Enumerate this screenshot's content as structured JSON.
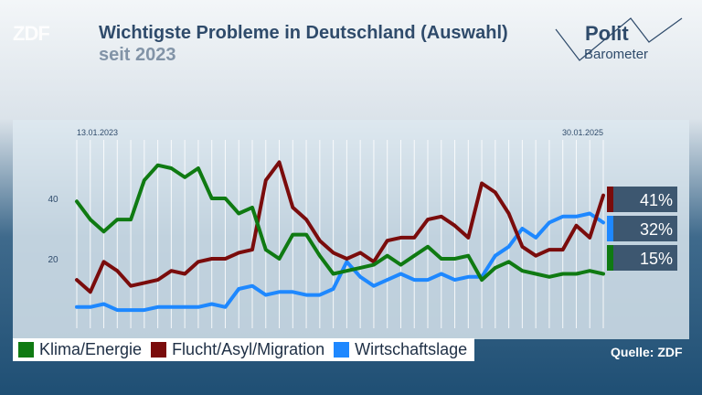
{
  "header": {
    "brand": "ZDF",
    "title": "Wichtigste Probleme in Deutschland (Auswahl)",
    "subtitle": "seit 2023"
  },
  "logo": {
    "line1": "Polit",
    "line2": "Barometer"
  },
  "source": "Quelle: ZDF",
  "colors": {
    "klima": "#0f7a12",
    "flucht": "#7a0c0c",
    "wirtschaft": "#1e88ff",
    "badge": "#3d5770"
  },
  "chart_data": {
    "type": "line",
    "title": "Wichtigste Probleme in Deutschland (Auswahl)",
    "subtitle": "seit 2023",
    "x_start_label": "13.01.2023",
    "x_end_label": "30.01.2025",
    "y_ticks": [
      20,
      40
    ],
    "ylim": [
      0,
      60
    ],
    "grid": "vertical",
    "legend": "bottom",
    "series": [
      {
        "name": "Klima/Energie",
        "key": "klima",
        "color": "#0f7a12",
        "final_label": "15%",
        "values": [
          39,
          33,
          29,
          33,
          33,
          46,
          51,
          50,
          47,
          50,
          40,
          40,
          35,
          37,
          23,
          20,
          28,
          28,
          21,
          15,
          16,
          17,
          18,
          21,
          18,
          21,
          24,
          20,
          20,
          21,
          13,
          17,
          19,
          16,
          15,
          14,
          15,
          15,
          16,
          15
        ]
      },
      {
        "name": "Flucht/Asyl/Migration",
        "key": "flucht",
        "color": "#7a0c0c",
        "final_label": "41%",
        "values": [
          13,
          9,
          19,
          16,
          11,
          12,
          13,
          16,
          15,
          19,
          20,
          20,
          22,
          23,
          46,
          52,
          37,
          33,
          26,
          22,
          20,
          22,
          19,
          26,
          27,
          27,
          33,
          34,
          31,
          27,
          45,
          42,
          35,
          24,
          21,
          23,
          23,
          31,
          27,
          41
        ]
      },
      {
        "name": "Wirtschaftslage",
        "key": "wirtschaft",
        "color": "#1e88ff",
        "final_label": "32%",
        "values": [
          4,
          4,
          5,
          3,
          3,
          3,
          4,
          4,
          4,
          4,
          5,
          4,
          10,
          11,
          8,
          9,
          9,
          8,
          8,
          10,
          19,
          14,
          11,
          13,
          15,
          13,
          13,
          15,
          13,
          14,
          14,
          21,
          24,
          30,
          27,
          32,
          34,
          34,
          35,
          32
        ]
      }
    ]
  }
}
